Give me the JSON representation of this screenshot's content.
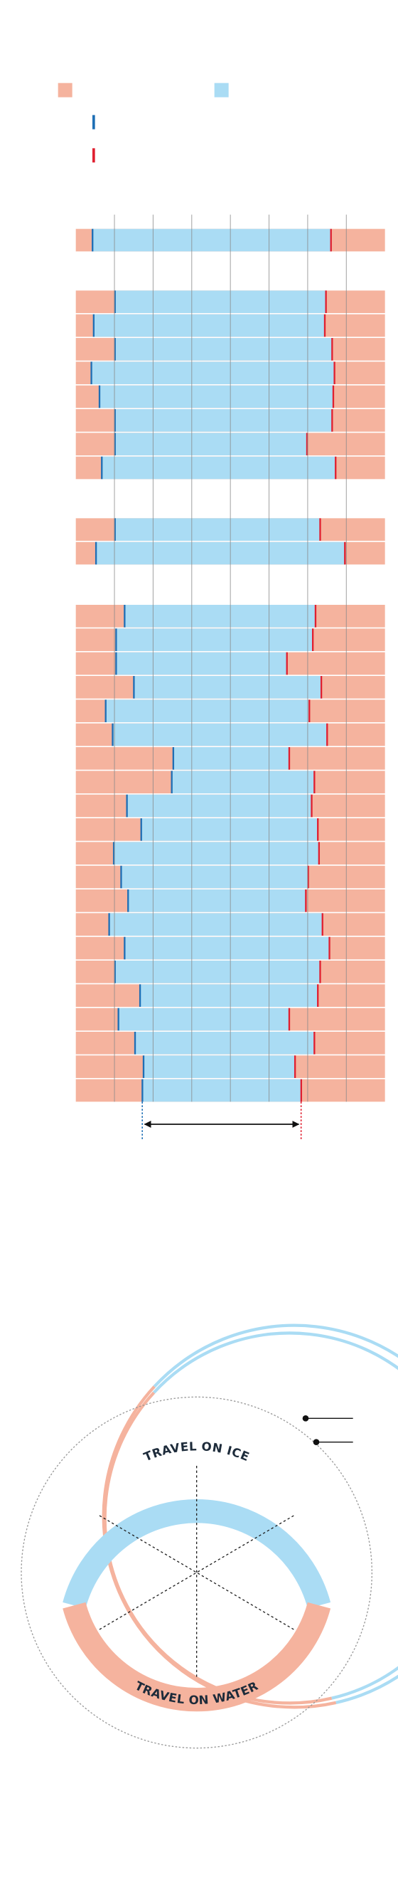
{
  "chart_data": {
    "type": "range-bar",
    "xlim": [
      0,
      8
    ],
    "xticks": [
      1,
      2,
      3,
      4,
      5,
      6,
      7
    ],
    "grid": true,
    "ice_color": "#aadcf4",
    "water_color": "#f5b39e",
    "start_color": "#1f6fb5",
    "end_color": "#e02030",
    "groups": [
      {
        "start": [
          0.43
        ],
        "end": [
          6.6
        ]
      },
      {
        "start": [
          1.01,
          0.46,
          1.01,
          0.4,
          0.61,
          1.01,
          1.01,
          0.67
        ],
        "end": [
          6.47,
          6.44,
          6.63,
          6.69,
          6.66,
          6.63,
          5.98,
          6.72
        ]
      },
      {
        "start": [
          1.01,
          0.52
        ],
        "end": [
          6.32,
          6.96
        ]
      },
      {
        "start": [
          1.26,
          1.04,
          1.04,
          1.5,
          0.77,
          0.95,
          2.52,
          2.48,
          1.32,
          1.69,
          0.98,
          1.17,
          1.35,
          0.86,
          1.26,
          1.01,
          1.66,
          1.1,
          1.53,
          1.75,
          1.72
        ],
        "end": [
          6.2,
          6.13,
          5.46,
          6.35,
          6.04,
          6.5,
          5.52,
          6.17,
          6.1,
          6.26,
          6.29,
          6.01,
          5.95,
          6.38,
          6.56,
          6.32,
          6.26,
          5.52,
          6.17,
          5.67,
          5.83
        ]
      }
    ]
  },
  "diagram": {
    "top_label": "TRAVEL ON ICE",
    "bottom_label": "TRAVEL ON WATER"
  }
}
